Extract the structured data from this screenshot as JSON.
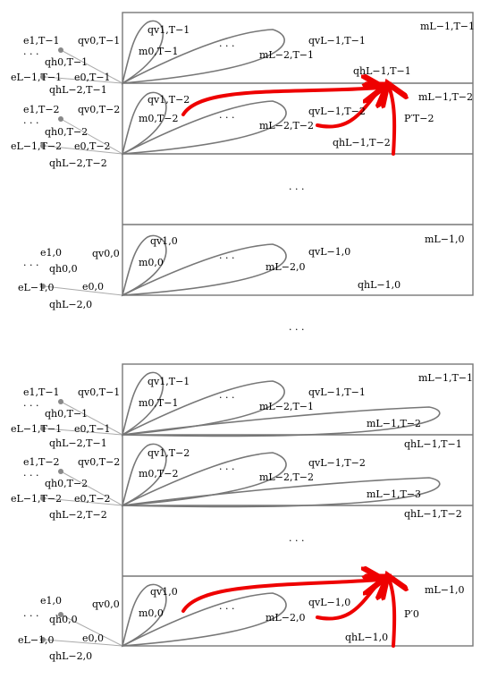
{
  "colors": {
    "loop": "#777777",
    "highlight": "#ee0000",
    "ray": "#aaaaaa"
  },
  "ellipsis": "· · ·",
  "top": {
    "row1": {
      "e1": "e1,T−1",
      "dots": "· · ·",
      "eL": "eL−1,T−1",
      "qh0": "qh0,T−1",
      "qhL2": "qhL−2,T−1",
      "qv0": "qv0,T−1",
      "e0": "e0,T−1",
      "qv1": "qv1,T−1",
      "m0": "m0,T−1",
      "mid": "· · ·",
      "qvL": "qvL−1,T−1",
      "mL2": "mL−2,T−1",
      "qhL": "qhL−1,T−1",
      "mL": "mL−1,T−1"
    },
    "row2": {
      "e1": "e1,T−2",
      "dots": "· · ·",
      "eL": "eL−1,T−2",
      "qh0": "qh0,T−2",
      "qhL2": "qhL−2,T−2",
      "qv0": "qv0,T−2",
      "e0": "e0,T−2",
      "qv1": "qv1,T−2",
      "m0": "m0,T−2",
      "mid": "· · ·",
      "qvL": "qvL−1,T−2",
      "mL2": "mL−2,T−2",
      "qhL": "qhL−1,T−2",
      "mL": "mL−1,T−2",
      "P": "P′T−2"
    },
    "middots": "· · ·",
    "row0": {
      "e1": "e1,0",
      "dots": "· · ·",
      "eL": "eL−1,0",
      "qh0": "qh0,0",
      "qhL2": "qhL−2,0",
      "qv0": "qv0,0",
      "e0": "e0,0",
      "qv1": "qv1,0",
      "m0": "m0,0",
      "mid": "· · ·",
      "qvL": "qvL−1,0",
      "mL2": "mL−2,0",
      "qhL": "qhL−1,0",
      "mL": "mL−1,0"
    }
  },
  "between": "· · ·",
  "bottom": {
    "row1": {
      "e1": "e1,T−1",
      "dots": "· · ·",
      "eL": "eL−1,T−1",
      "qh0": "qh0,T−1",
      "qhL2": "qhL−2,T−1",
      "qv0": "qv0,T−1",
      "e0": "e0,T−1",
      "qv1": "qv1,T−1",
      "m0": "m0,T−1",
      "mid": "· · ·",
      "qvL": "qvL−1,T−1",
      "mL2": "mL−2,T−1",
      "mLbig": "mL−1,T−2",
      "qhL": "qhL−1,T−1",
      "mL": "mL−1,T−1"
    },
    "row2": {
      "e1": "e1,T−2",
      "dots": "· · ·",
      "eL": "eL−1,T−2",
      "qh0": "qh0,T−2",
      "qhL2": "qhL−2,T−2",
      "qv0": "qv0,T−2",
      "e0": "e0,T−2",
      "qv1": "qv1,T−2",
      "m0": "m0,T−2",
      "mid": "· · ·",
      "qvL": "qvL−1,T−2",
      "mL2": "mL−2,T−2",
      "mLbig": "mL−1,T−3",
      "qhL": "qhL−1,T−2"
    },
    "middots": "· · ·",
    "row0": {
      "e1": "e1,0",
      "dots": "· · ·",
      "eL": "eL−1,0",
      "qh0": "qh0,0",
      "qhL2": "qhL−2,0",
      "qv0": "qv0,0",
      "e0": "e0,0",
      "qv1": "qv1,0",
      "m0": "m0,0",
      "mid": "· · ·",
      "qvL": "qvL−1,0",
      "mL2": "mL−2,0",
      "qhL": "qhL−1,0",
      "mL": "mL−1,0",
      "P": "P′0"
    }
  }
}
